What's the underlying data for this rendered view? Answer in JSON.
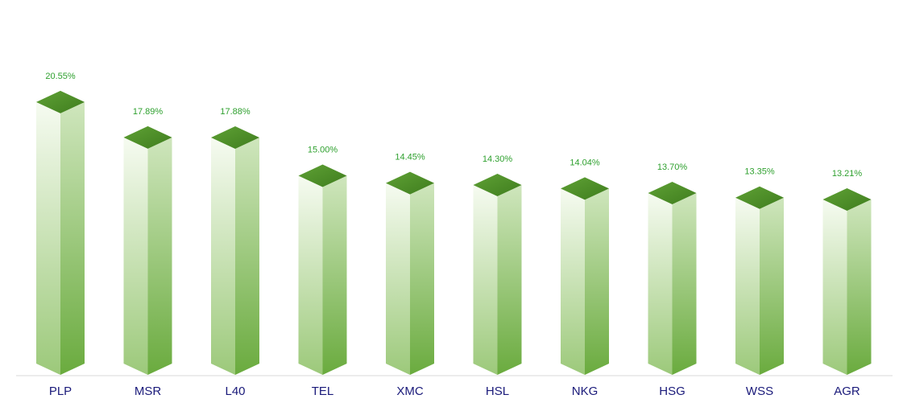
{
  "chart_data": {
    "type": "bar",
    "style": "3d-isometric-columns",
    "categories": [
      "PLP",
      "MSR",
      "L40",
      "TEL",
      "XMC",
      "HSL",
      "NKG",
      "HSG",
      "WSS",
      "AGR"
    ],
    "values": [
      20.55,
      17.89,
      17.88,
      15.0,
      14.45,
      14.3,
      14.04,
      13.7,
      13.35,
      13.21
    ],
    "data_labels": [
      "20.55%",
      "17.89%",
      "17.88%",
      "15.00%",
      "14.45%",
      "14.30%",
      "14.04%",
      "13.70%",
      "13.35%",
      "13.21%"
    ],
    "title": "",
    "xlabel": "",
    "ylabel": "",
    "ylim": [
      0,
      23.5
    ],
    "grid": false,
    "legend": "none",
    "colors": {
      "top_face": "#5fa135",
      "top_face_dark": "#3f7d1e",
      "front_light": "#f6fbf1",
      "front_dark": "#9cc97a",
      "side_light": "#cfe6bd",
      "side_dark": "#6aab3e",
      "data_label": "#2ea02e",
      "tick_label": "#1a1a7a",
      "baseline": "#d9d9d9"
    }
  }
}
